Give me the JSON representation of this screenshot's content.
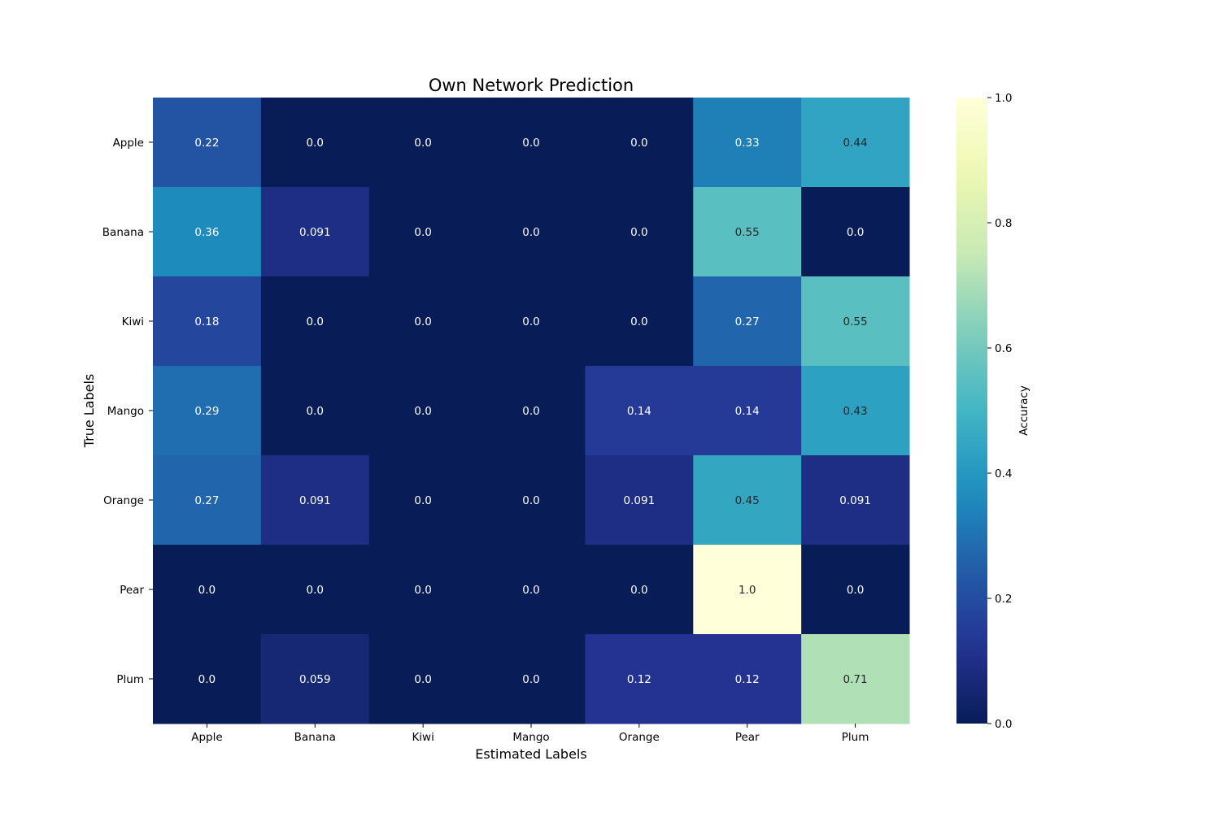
{
  "chart_data": {
    "type": "heatmap",
    "title": "Own Network Prediction",
    "xlabel": "Estimated Labels",
    "ylabel": "True Labels",
    "x_categories": [
      "Apple",
      "Banana",
      "Kiwi",
      "Mango",
      "Orange",
      "Pear",
      "Plum"
    ],
    "y_categories": [
      "Apple",
      "Banana",
      "Kiwi",
      "Mango",
      "Orange",
      "Pear",
      "Plum"
    ],
    "cell_labels": [
      [
        "0.22",
        "0.0",
        "0.0",
        "0.0",
        "0.0",
        "0.33",
        "0.44"
      ],
      [
        "0.36",
        "0.091",
        "0.0",
        "0.0",
        "0.0",
        "0.55",
        "0.0"
      ],
      [
        "0.18",
        "0.0",
        "0.0",
        "0.0",
        "0.0",
        "0.27",
        "0.55"
      ],
      [
        "0.29",
        "0.0",
        "0.0",
        "0.0",
        "0.14",
        "0.14",
        "0.43"
      ],
      [
        "0.27",
        "0.091",
        "0.0",
        "0.0",
        "0.091",
        "0.45",
        "0.091"
      ],
      [
        "0.0",
        "0.0",
        "0.0",
        "0.0",
        "0.0",
        "1.0",
        "0.0"
      ],
      [
        "0.0",
        "0.059",
        "0.0",
        "0.0",
        "0.12",
        "0.12",
        "0.71"
      ]
    ],
    "colorbar": {
      "label": "Accuracy",
      "range": [
        0,
        1
      ],
      "tick_labels": [
        "0.0",
        "0.2",
        "0.4",
        "0.6",
        "0.8",
        "1.0"
      ],
      "colormap": "YlGnBu"
    }
  }
}
